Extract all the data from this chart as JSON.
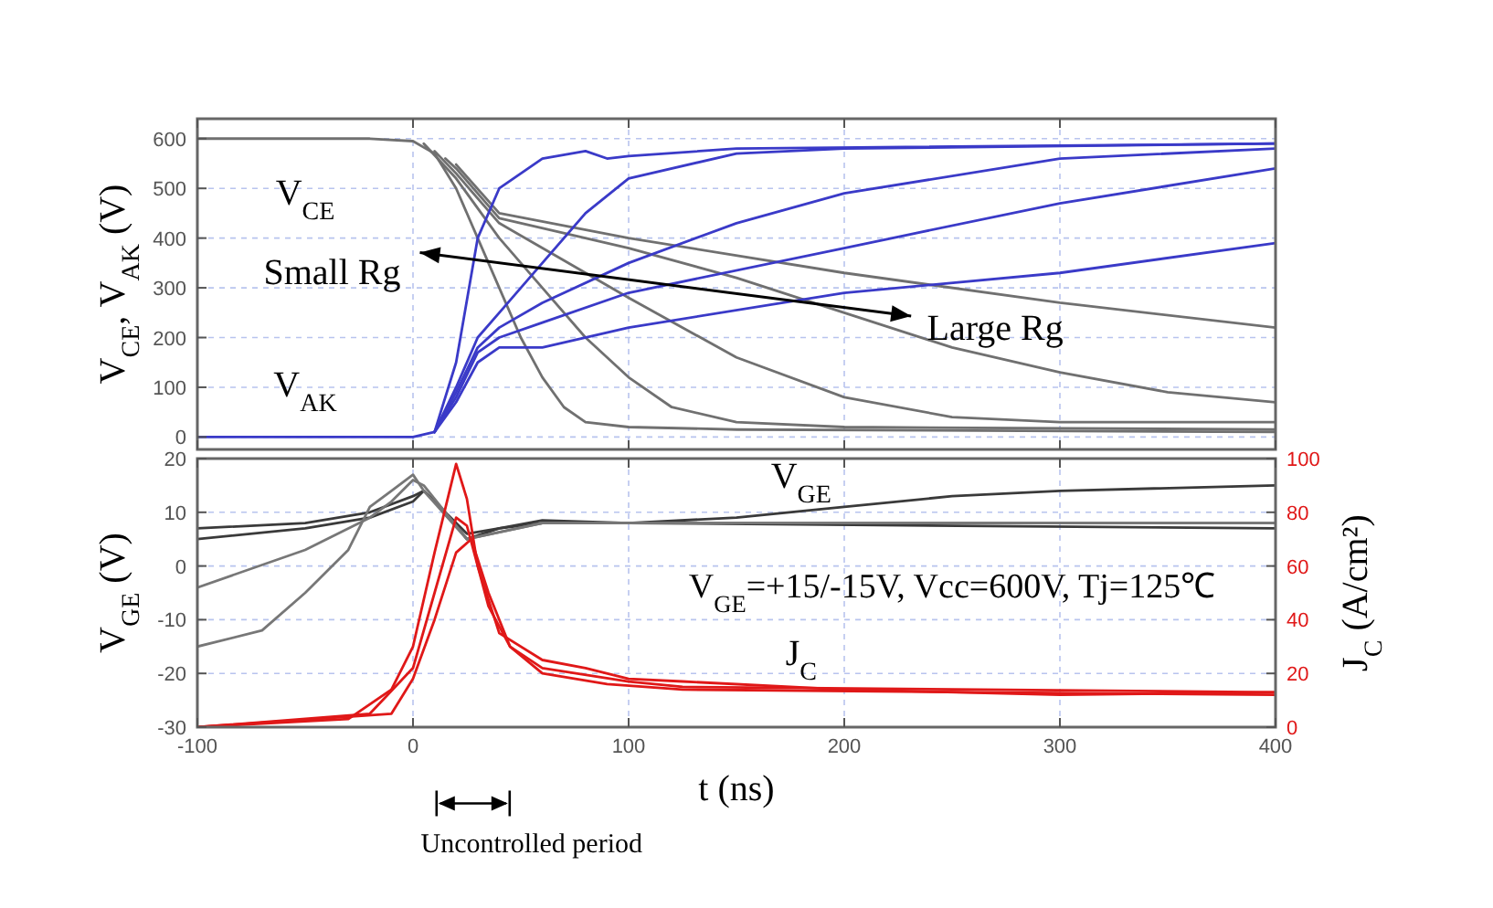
{
  "chart_data": [
    {
      "type": "line",
      "ylabel": "V$_{CE}$, V$_{AK}$ (V)",
      "xlim": [
        -100,
        400
      ],
      "ylim": [
        -25,
        640
      ],
      "xticks": [
        -100,
        0,
        100,
        200,
        300,
        400
      ],
      "yticks": [
        0,
        100,
        200,
        300,
        400,
        500,
        600
      ],
      "tick_labels": "y",
      "grid": true,
      "series": [
        {
          "color": "#707070",
          "x": [
            -100,
            -20,
            0,
            10,
            20,
            30,
            40,
            50,
            60,
            70,
            80,
            100,
            150,
            400
          ],
          "values": [
            600,
            600,
            595,
            570,
            500,
            400,
            300,
            200,
            120,
            60,
            30,
            20,
            15,
            10
          ]
        },
        {
          "color": "#707070",
          "x": [
            5,
            20,
            40,
            60,
            80,
            100,
            120,
            150,
            200,
            400
          ],
          "values": [
            590,
            520,
            400,
            300,
            200,
            120,
            60,
            30,
            20,
            15
          ]
        },
        {
          "color": "#707070",
          "x": [
            10,
            20,
            40,
            60,
            100,
            150,
            200,
            250,
            300,
            400
          ],
          "values": [
            575,
            530,
            430,
            380,
            280,
            160,
            80,
            40,
            30,
            30
          ]
        },
        {
          "color": "#707070",
          "x": [
            15,
            20,
            40,
            100,
            150,
            200,
            250,
            300,
            350,
            400
          ],
          "values": [
            560,
            540,
            440,
            380,
            320,
            250,
            180,
            130,
            90,
            70
          ]
        },
        {
          "color": "#707070",
          "x": [
            20,
            40,
            100,
            200,
            300,
            400
          ],
          "values": [
            548,
            450,
            400,
            330,
            270,
            220
          ]
        },
        {
          "color": "#3a3ac8",
          "x": [
            -100,
            0,
            10,
            20,
            30,
            40,
            60,
            80,
            90,
            100,
            150,
            400
          ],
          "values": [
            0,
            0,
            10,
            150,
            400,
            500,
            560,
            575,
            560,
            565,
            580,
            590
          ]
        },
        {
          "color": "#3a3ac8",
          "x": [
            10,
            20,
            30,
            40,
            60,
            80,
            100,
            150,
            200,
            400
          ],
          "values": [
            10,
            100,
            200,
            250,
            350,
            450,
            520,
            570,
            580,
            590
          ]
        },
        {
          "color": "#3a3ac8",
          "x": [
            10,
            20,
            30,
            40,
            60,
            100,
            150,
            200,
            300,
            400
          ],
          "values": [
            10,
            90,
            180,
            220,
            270,
            350,
            430,
            490,
            560,
            580
          ]
        },
        {
          "color": "#3a3ac8",
          "x": [
            10,
            20,
            30,
            40,
            60,
            100,
            200,
            300,
            400
          ],
          "values": [
            10,
            80,
            170,
            200,
            230,
            290,
            380,
            470,
            540
          ]
        },
        {
          "color": "#3a3ac8",
          "x": [
            10,
            20,
            30,
            40,
            60,
            100,
            200,
            300,
            400
          ],
          "values": [
            10,
            70,
            150,
            180,
            180,
            220,
            290,
            330,
            390
          ]
        }
      ],
      "annotations": [
        "V$_{CE}$",
        "V$_{AK}$",
        "Small Rg",
        "Large Rg"
      ]
    },
    {
      "type": "line",
      "xlabel": "t (ns)",
      "ylabel": "V$_{GE}$ (V)",
      "y2label": "J$_{C}$ (A/cm²)",
      "xlim": [
        -100,
        400
      ],
      "ylim": [
        -30,
        20
      ],
      "y2lim": [
        0,
        100
      ],
      "xticks": [
        -100,
        0,
        100,
        200,
        300,
        400
      ],
      "yticks": [
        -30,
        -20,
        -10,
        0,
        10,
        20
      ],
      "y2ticks": [
        0,
        20,
        40,
        60,
        80,
        100
      ],
      "grid": true,
      "series": [
        {
          "color": "#3a3a3a",
          "x": [
            -100,
            -50,
            -20,
            0,
            5,
            15,
            25,
            40,
            60,
            100,
            400
          ],
          "values": [
            7,
            8,
            10,
            13,
            14,
            10,
            5,
            7,
            8,
            8,
            7
          ]
        },
        {
          "color": "#3a3a3a",
          "x": [
            -100,
            -50,
            -20,
            0,
            5,
            15,
            25,
            40,
            60,
            100,
            150,
            200,
            250,
            300,
            400
          ],
          "values": [
            5,
            7,
            9,
            12,
            14,
            10,
            6,
            7,
            8.5,
            8,
            9,
            11,
            13,
            14,
            15
          ]
        },
        {
          "color": "#777777",
          "x": [
            -100,
            -50,
            -20,
            -10,
            0,
            5,
            25,
            60,
            400
          ],
          "values": [
            -4,
            3,
            9,
            12,
            16,
            15,
            5,
            8,
            8
          ]
        },
        {
          "color": "#777777",
          "x": [
            -100,
            -70,
            -50,
            -30,
            -20,
            -10,
            0,
            5,
            25,
            60,
            400
          ],
          "values": [
            -15,
            -12,
            -5,
            3,
            11,
            14,
            17,
            14,
            5,
            8,
            8
          ]
        },
        {
          "color": "#e01818",
          "axis": "y2",
          "x": [
            -100,
            -30,
            -10,
            0,
            10,
            20,
            25,
            30,
            40,
            60,
            80,
            100,
            125,
            200,
            300,
            400
          ],
          "values": [
            0,
            3,
            14,
            30,
            65,
            98,
            85,
            60,
            35,
            25,
            22,
            18,
            17,
            14,
            12,
            13
          ]
        },
        {
          "color": "#e01818",
          "axis": "y2",
          "x": [
            -100,
            -20,
            0,
            10,
            20,
            25,
            35,
            45,
            60,
            100,
            125,
            400
          ],
          "values": [
            0,
            5,
            22,
            50,
            78,
            75,
            45,
            30,
            22,
            17,
            15,
            13
          ]
        },
        {
          "color": "#e01818",
          "axis": "y2",
          "x": [
            -100,
            -10,
            0,
            10,
            20,
            27,
            35,
            45,
            60,
            90,
            125,
            400
          ],
          "values": [
            0,
            5,
            18,
            40,
            65,
            70,
            50,
            30,
            20,
            16,
            14,
            12
          ]
        }
      ],
      "annotations": [
        "V$_{GE}$",
        "V$_{GE}$=+15/-15V, Vcc=600V, Tj=125℃",
        "J$_{C}$",
        "Uncontrolled period"
      ]
    }
  ]
}
